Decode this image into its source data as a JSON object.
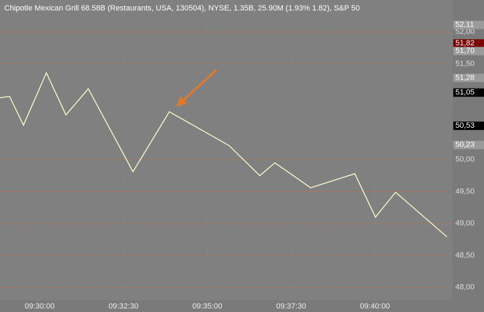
{
  "chart_data": {
    "type": "line",
    "title": "Chipotle Mexican Grill  68.58B (Restaurants, USA, 130504), NYSE, 1.35B, 25.90M (1.93% 1.82), S&P 50",
    "x": [
      "09:28:49",
      "09:29:06",
      "09:29:31",
      "09:30:12",
      "09:30:47",
      "09:31:27",
      "09:32:47",
      "09:33:52",
      "09:35:39",
      "09:36:34",
      "09:37:01",
      "09:38:05",
      "09:39:24",
      "09:40:01",
      "09:40:37",
      "09:42:09"
    ],
    "series": [
      {
        "color": "#ffffcc",
        "values": [
          50.97,
          50.99,
          50.54,
          51.36,
          50.7,
          51.11,
          49.81,
          50.75,
          50.22,
          49.75,
          49.95,
          49.56,
          49.78,
          49.1,
          49.49,
          48.79
        ]
      }
    ],
    "xlim": [
      "09:28:49",
      "09:42:19"
    ],
    "xticks": [
      "09:30:00",
      "09:32:30",
      "09:35:00",
      "09:37:30",
      "09:40:00"
    ],
    "ylim": [
      47.8,
      52.5
    ],
    "yticks": [
      {
        "value": 52.0,
        "label": "52,00"
      },
      {
        "value": 51.5,
        "label": "51,50"
      },
      {
        "value": 50.0,
        "label": "50,00"
      },
      {
        "value": 49.5,
        "label": "49,50"
      },
      {
        "value": 49.0,
        "label": "49,00"
      },
      {
        "value": 48.5,
        "label": "48,50"
      },
      {
        "value": 48.0,
        "label": "48,00"
      }
    ],
    "grid": true,
    "grid_color": "#c87040",
    "price_labels": [
      {
        "value": 52.11,
        "label": "52,11",
        "color": "#9a9a9a"
      },
      {
        "value": 51.82,
        "label": "51,82",
        "color": "#7a0000"
      },
      {
        "value": 51.7,
        "label": "51,70",
        "color": "#9a9a9a"
      },
      {
        "value": 51.28,
        "label": "51,28",
        "color": "#9a9a9a"
      },
      {
        "value": 51.05,
        "label": "51,05",
        "color": "#000000"
      },
      {
        "value": 50.53,
        "label": "50,53",
        "color": "#000000"
      },
      {
        "value": 50.23,
        "label": "50,23",
        "color": "#9a9a9a"
      }
    ]
  }
}
